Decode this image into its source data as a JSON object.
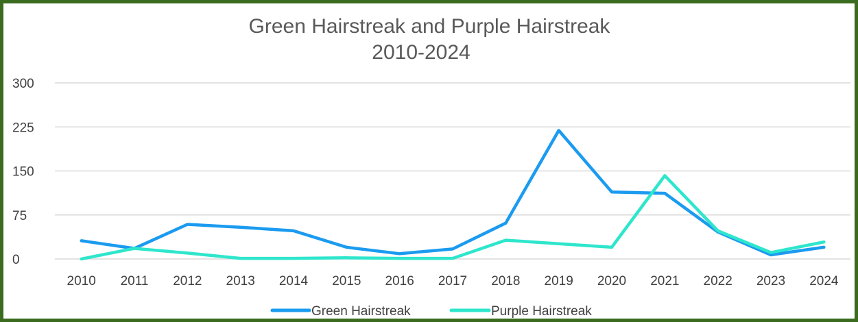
{
  "chart_data": {
    "type": "line",
    "title_lines": [
      "Green Hairstreak and Purple Hairstreak",
      "2010-2024"
    ],
    "categories": [
      "2010",
      "2011",
      "2012",
      "2013",
      "2014",
      "2015",
      "2016",
      "2017",
      "2018",
      "2019",
      "2020",
      "2021",
      "2022",
      "2023",
      "2024"
    ],
    "y_ticks": [
      "0",
      "75",
      "150",
      "225",
      "300"
    ],
    "ylim": [
      0,
      300
    ],
    "grid": true,
    "legend_position": "bottom",
    "series": [
      {
        "name": "Green Hairstreak",
        "color": "#1b9bf0",
        "values": [
          31,
          18,
          59,
          54,
          48,
          20,
          9,
          17,
          61,
          219,
          114,
          112,
          46,
          7,
          20
        ]
      },
      {
        "name": "Purple Hairstreak",
        "color": "#2ee6cc",
        "values": [
          0,
          18,
          10,
          1,
          1,
          2,
          1,
          1,
          32,
          26,
          20,
          142,
          48,
          11,
          29
        ]
      }
    ]
  }
}
